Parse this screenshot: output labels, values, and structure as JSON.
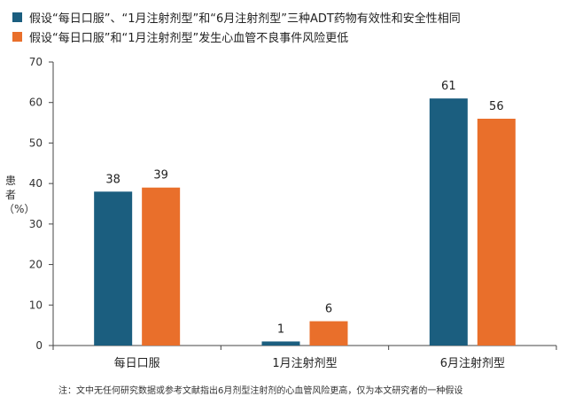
{
  "chart_data": {
    "type": "bar",
    "categories": [
      "每日口服",
      "1月注射剂型",
      "6月注射剂型"
    ],
    "series": [
      {
        "name": "假设“每日口服”、“1月注射剂型”和“6月注射剂型”三种ADT药物有效性和安全性相同",
        "values": [
          38,
          1,
          61
        ],
        "color": "#1b5e7f"
      },
      {
        "name": "假设“每日口服”和“1月注射剂型”发生心血管不良事件风险更低",
        "values": [
          39,
          6,
          56
        ],
        "color": "#e96f2b"
      }
    ],
    "ylabel": "患者（%）",
    "ylim": [
      0,
      70
    ],
    "yticks": [
      0,
      10,
      20,
      30,
      40,
      50,
      60,
      70
    ],
    "grid": false,
    "legend": "top-left",
    "note": "注：文中无任何研究数据或参考文献指出6月剂型注射剂的心血管风险更高，仅为本文研究者的一种假设"
  }
}
